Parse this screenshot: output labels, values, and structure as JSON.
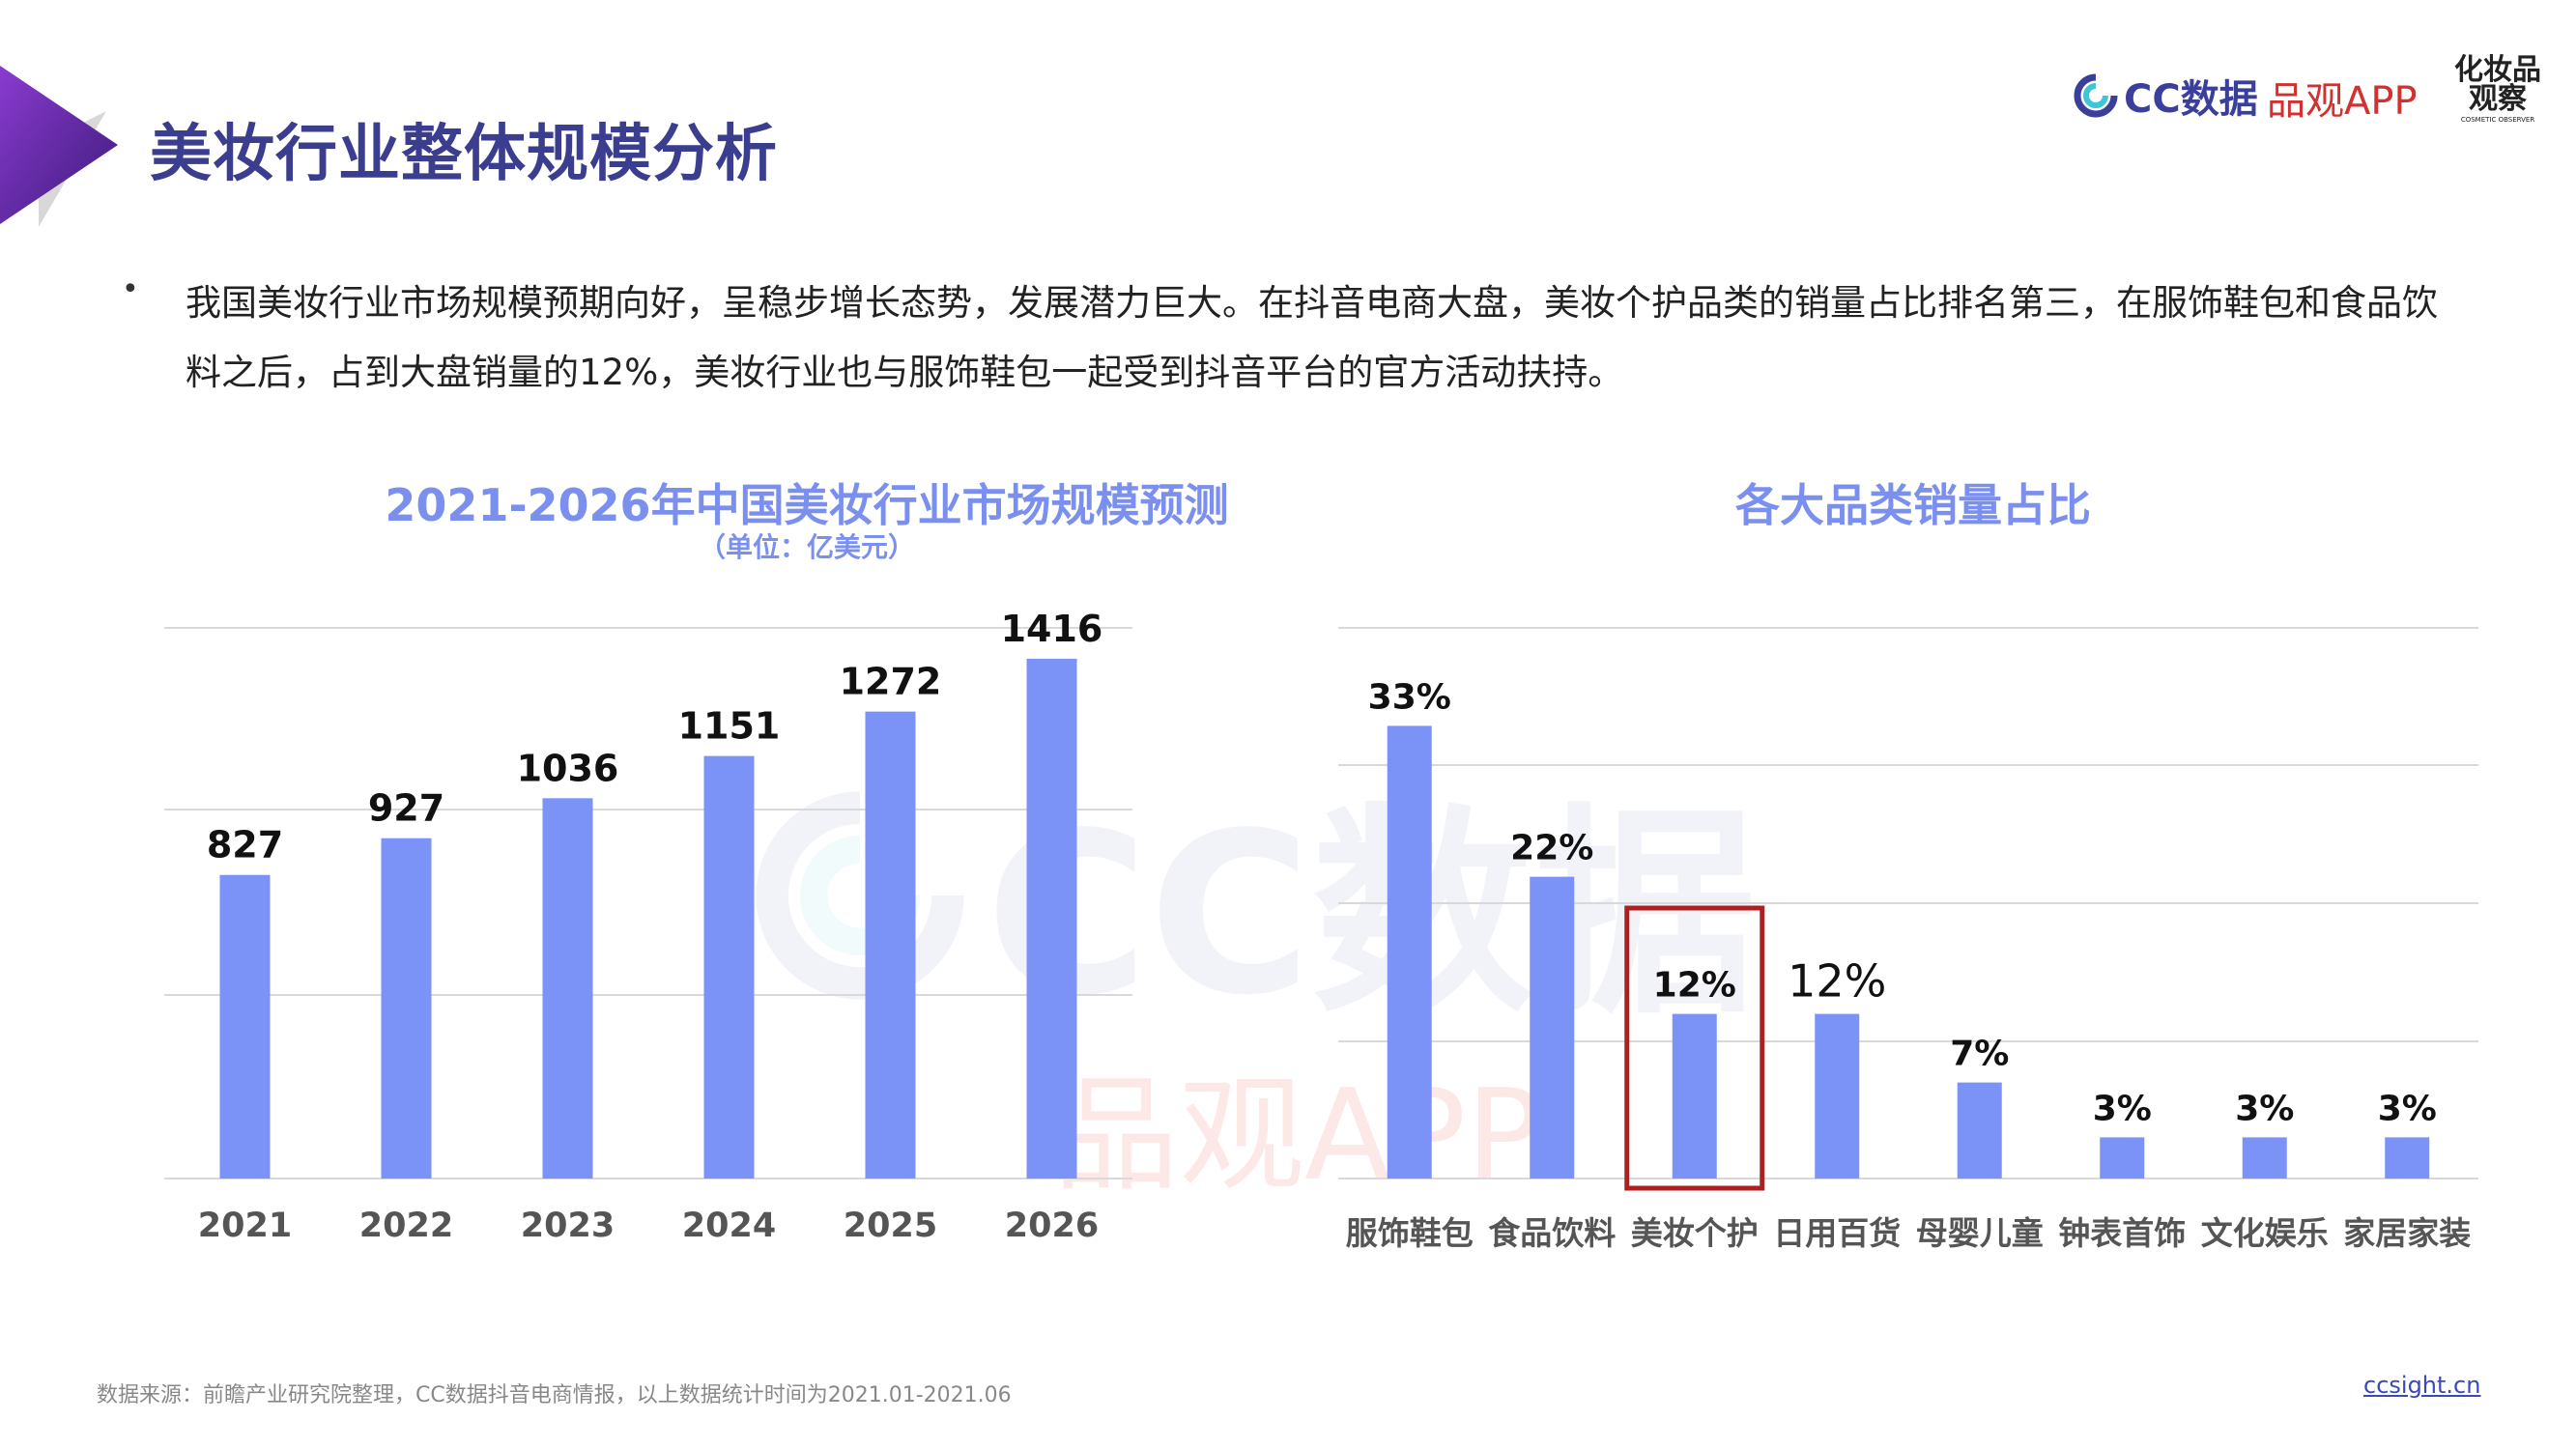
{
  "page_title": "美妆行业整体规模分析",
  "brands": {
    "cc": "CC数据",
    "pinguan": "品观APP",
    "cosmetic_main": "化妆品观察",
    "cosmetic_sub": "COSMETIC OBSERVER"
  },
  "bullet": "•",
  "intro_text": "我国美妆行业市场规模预期向好，呈稳步增长态势，发展潜力巨大。在抖音电商大盘，美妆个护品类的销量占比排名第三，在服饰鞋包和食品饮料之后，占到大盘销量的12%，美妆行业也与服饰鞋包一起受到抖音平台的官方活动扶持。",
  "watermarks": {
    "cc": "CC数据",
    "pinguan": "品观APP"
  },
  "colors": {
    "bar": "#7b93f6",
    "title": "#3b3d8f",
    "chart_title": "#7b90ee",
    "highlight_box": "#b01f1f",
    "grid": "#d9d9d9"
  },
  "chart_data": [
    {
      "type": "bar",
      "title": "2021-2026年中国美妆行业市场规模预测",
      "subtitle": "（单位：亿美元）",
      "categories": [
        "2021",
        "2022",
        "2023",
        "2024",
        "2025",
        "2026"
      ],
      "values": [
        827,
        927,
        1036,
        1151,
        1272,
        1416
      ],
      "labels": [
        "827",
        "927",
        "1036",
        "1151",
        "1272",
        "1416"
      ],
      "ylim": [
        0,
        1500
      ],
      "grid": true
    },
    {
      "type": "bar",
      "title": "各大品类销量占比",
      "categories": [
        "服饰鞋包",
        "食品饮料",
        "美妆个护",
        "日用百货",
        "母婴儿童",
        "钟表首饰",
        "文化娱乐",
        "家居家装"
      ],
      "values": [
        33,
        22,
        12,
        12,
        7,
        3,
        3,
        3
      ],
      "labels": [
        "33%",
        "22%",
        "12%",
        "12%",
        "7%",
        "3%",
        "3%",
        "3%"
      ],
      "highlight": "美妆个护",
      "ylim": [
        0,
        40
      ],
      "grid": true
    }
  ],
  "footer": {
    "source": "数据来源：前瞻产业研究院整理，CC数据抖音电商情报，以上数据统计时间为2021.01-2021.06",
    "site": "ccsight.cn"
  }
}
